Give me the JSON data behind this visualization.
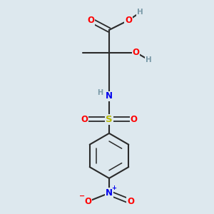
{
  "bg_color": "#dde8ee",
  "atom_colors": {
    "C": "#404040",
    "H": "#7a9aa8",
    "O": "#ff0000",
    "N": "#0000ee",
    "S": "#b8b800"
  },
  "bond_color": "#2a2a2a",
  "figsize": [
    3.0,
    3.0
  ],
  "dpi": 100,
  "xlim": [
    0,
    10
  ],
  "ylim": [
    0,
    10
  ]
}
